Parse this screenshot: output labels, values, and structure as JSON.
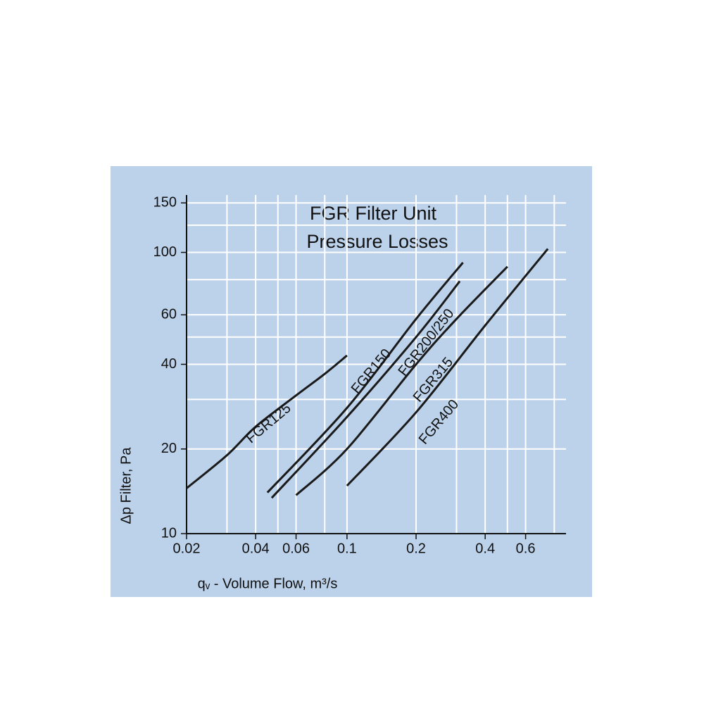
{
  "chart_data": {
    "type": "line",
    "title": [
      "FGR Filter  Unit",
      "Pressure  Losses"
    ],
    "x_label": "qᵥ - Volume Flow, m³/s",
    "y_label": "Δp Filter, Pa",
    "x_log": true,
    "y_log": true,
    "grid": true,
    "xlim": [
      0.02,
      0.9
    ],
    "ylim": [
      10,
      160
    ],
    "xticks": [
      0.02,
      0.04,
      0.06,
      0.1,
      0.2,
      0.4,
      0.6
    ],
    "yticks": [
      10,
      20,
      40,
      60,
      100,
      150
    ],
    "x_minor_grid": [
      0.03,
      0.05,
      0.08,
      0.3,
      0.5,
      0.8
    ],
    "y_minor_grid": [
      30,
      50,
      80,
      125
    ],
    "series": [
      {
        "name": "FGR125",
        "color": "#1a1a1a",
        "x": [
          0.02,
          0.03,
          0.04,
          0.06,
          0.08,
          0.1
        ],
        "values": [
          14.5,
          19,
          24,
          31,
          37,
          43
        ]
      },
      {
        "name": "FGR150",
        "color": "#1a1a1a",
        "x": [
          0.045,
          0.1,
          0.2,
          0.32
        ],
        "values": [
          14,
          28,
          58,
          92
        ]
      },
      {
        "name": "FGR200/250",
        "color": "#1a1a1a",
        "x": [
          0.047,
          0.1,
          0.2,
          0.31
        ],
        "values": [
          13.4,
          26,
          50,
          79
        ]
      },
      {
        "name": "FGR315",
        "color": "#1a1a1a",
        "x": [
          0.06,
          0.1,
          0.2,
          0.3,
          0.5
        ],
        "values": [
          13.7,
          20,
          40,
          58,
          89
        ]
      },
      {
        "name": "FGR400",
        "color": "#1a1a1a",
        "x": [
          0.1,
          0.2,
          0.4,
          0.75
        ],
        "values": [
          14.8,
          27,
          55,
          103
        ]
      }
    ]
  }
}
